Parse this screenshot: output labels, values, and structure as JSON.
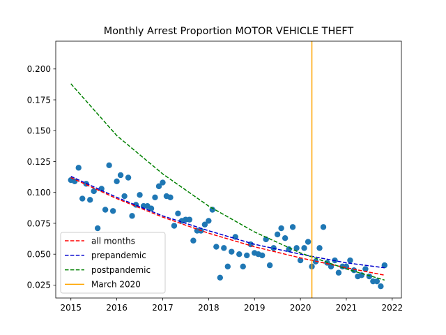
{
  "chart_data": {
    "type": "scatter",
    "title": "Monthly Arrest Proportion MOTOR VEHICLE THEFT",
    "xlabel": "",
    "ylabel": "",
    "xlim": [
      2014.67,
      2022.2
    ],
    "ylim": [
      0.0145,
      0.2225
    ],
    "x_ticks": [
      2015,
      2016,
      2017,
      2018,
      2019,
      2020,
      2021,
      2022
    ],
    "y_ticks": [
      0.025,
      0.05,
      0.075,
      0.1,
      0.125,
      0.15,
      0.175,
      0.2
    ],
    "y_tick_labels": [
      "0.025",
      "0.050",
      "0.075",
      "0.100",
      "0.125",
      "0.150",
      "0.175",
      "0.200"
    ],
    "grid": false,
    "legend_position": "lower-left",
    "colors": {
      "points": "#1f77b4",
      "all_months": "#ff0000",
      "prepandemic": "#0000cc",
      "postpandemic": "#008000",
      "march_2020": "#ffa500"
    },
    "points": {
      "x": [
        2015.0,
        2015.083,
        2015.167,
        2015.25,
        2015.333,
        2015.417,
        2015.5,
        2015.583,
        2015.667,
        2015.75,
        2015.833,
        2015.917,
        2016.0,
        2016.083,
        2016.167,
        2016.25,
        2016.333,
        2016.417,
        2016.5,
        2016.583,
        2016.667,
        2016.75,
        2016.833,
        2016.917,
        2017.0,
        2017.083,
        2017.167,
        2017.25,
        2017.333,
        2017.417,
        2017.5,
        2017.583,
        2017.667,
        2017.75,
        2017.833,
        2017.917,
        2018.0,
        2018.083,
        2018.167,
        2018.25,
        2018.333,
        2018.417,
        2018.5,
        2018.583,
        2018.667,
        2018.75,
        2018.833,
        2018.917,
        2019.0,
        2019.083,
        2019.167,
        2019.25,
        2019.333,
        2019.417,
        2019.5,
        2019.583,
        2019.667,
        2019.75,
        2019.833,
        2019.917,
        2020.0,
        2020.083,
        2020.167,
        2020.25,
        2020.333,
        2020.417,
        2020.5,
        2020.583,
        2020.667,
        2020.75,
        2020.833,
        2020.917,
        2021.0,
        2021.083,
        2021.167,
        2021.25,
        2021.333,
        2021.417,
        2021.5,
        2021.583,
        2021.667,
        2021.75,
        2021.833
      ],
      "y": [
        0.11,
        0.109,
        0.12,
        0.095,
        0.107,
        0.094,
        0.101,
        0.071,
        0.103,
        0.086,
        0.122,
        0.085,
        0.109,
        0.114,
        0.097,
        0.112,
        0.081,
        0.09,
        0.098,
        0.089,
        0.089,
        0.087,
        0.096,
        0.105,
        0.108,
        0.097,
        0.096,
        0.073,
        0.083,
        0.077,
        0.078,
        0.078,
        0.061,
        0.069,
        0.069,
        0.074,
        0.077,
        0.086,
        0.056,
        0.031,
        0.055,
        0.04,
        0.052,
        0.064,
        0.05,
        0.04,
        0.049,
        0.058,
        0.051,
        0.05,
        0.049,
        0.062,
        0.041,
        0.055,
        0.066,
        0.071,
        0.063,
        0.054,
        0.072,
        0.055,
        0.045,
        0.055,
        0.06,
        0.04,
        0.044,
        0.055,
        0.072,
        0.043,
        0.04,
        0.045,
        0.035,
        0.04,
        0.04,
        0.045,
        0.037,
        0.032,
        0.033,
        0.038,
        0.032,
        0.028,
        0.028,
        0.024,
        0.041
      ]
    },
    "series": [
      {
        "name": "all months",
        "style": "dashed",
        "x": [
          2015.0,
          2016.0,
          2017.0,
          2018.0,
          2019.0,
          2020.0,
          2021.0,
          2021.833
        ],
        "y": [
          0.112,
          0.095,
          0.08,
          0.067,
          0.056,
          0.047,
          0.039,
          0.033
        ]
      },
      {
        "name": "prepandemic",
        "style": "dashed",
        "x": [
          2015.0,
          2016.0,
          2017.0,
          2018.0,
          2019.0,
          2020.0,
          2021.0,
          2021.833
        ],
        "y": [
          0.113,
          0.096,
          0.081,
          0.069,
          0.058,
          0.05,
          0.043,
          0.039
        ]
      },
      {
        "name": "postpandemic",
        "style": "dashed",
        "x": [
          2015.0,
          2016.0,
          2017.0,
          2018.0,
          2019.0,
          2020.0,
          2021.0,
          2021.833
        ],
        "y": [
          0.188,
          0.146,
          0.115,
          0.089,
          0.068,
          0.051,
          0.038,
          0.029
        ]
      }
    ],
    "vline": {
      "name": "March 2020",
      "x": 2020.25
    }
  }
}
